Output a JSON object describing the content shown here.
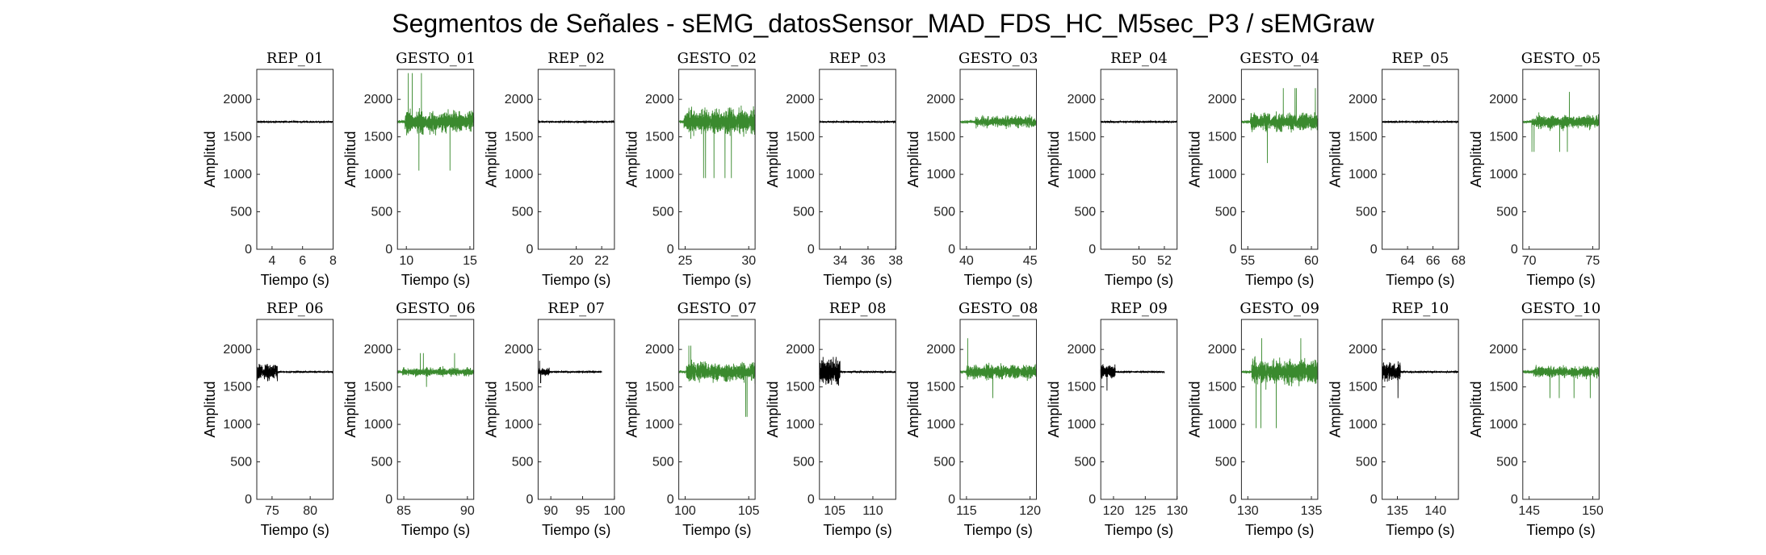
{
  "figure": {
    "title": "Segmentos de Señales - sEMG_datosSensor_MAD_FDS_HC_M5sec_P3 / sEMGraw"
  },
  "colors": {
    "rep": "#000000",
    "gesture": "#3a8a2e",
    "axis": "#262626"
  },
  "chart_data": [
    {
      "type": "line",
      "title": "REP_01",
      "kind": "rep",
      "xlabel": "Tiempo (s)",
      "ylabel": "Amplitud",
      "xlim": [
        3,
        8
      ],
      "ylim": [
        0,
        2400
      ],
      "xticks": [
        4,
        6,
        8
      ],
      "yticks": [
        0,
        500,
        1000,
        1500,
        2000
      ],
      "signal": {
        "baseline": 1700,
        "x_start": 3,
        "x_end": 8,
        "burst_end": 3,
        "min": 1670,
        "max": 1730
      }
    },
    {
      "type": "line",
      "title": "GESTO_01",
      "kind": "gesture",
      "xlabel": "Tiempo (s)",
      "ylabel": "Amplitud",
      "xlim": [
        9.3,
        15.3
      ],
      "ylim": [
        0,
        2400
      ],
      "xticks": [
        10,
        15
      ],
      "yticks": [
        0,
        500,
        1000,
        1500,
        2000
      ],
      "signal": {
        "baseline": 1700,
        "x_start": 9.3,
        "x_end": 15.3,
        "active_start": 9.9,
        "min": 1050,
        "max": 2350
      }
    },
    {
      "type": "line",
      "title": "REP_02",
      "kind": "rep",
      "xlabel": "Tiempo (s)",
      "ylabel": "Amplitud",
      "xlim": [
        17,
        23
      ],
      "ylim": [
        0,
        2400
      ],
      "xticks": [
        20,
        22
      ],
      "yticks": [
        0,
        500,
        1000,
        1500,
        2000
      ],
      "signal": {
        "baseline": 1700,
        "x_start": 17,
        "x_end": 23,
        "burst_end": 17,
        "min": 1670,
        "max": 1730
      }
    },
    {
      "type": "line",
      "title": "GESTO_02",
      "kind": "gesture",
      "xlabel": "Tiempo (s)",
      "ylabel": "Amplitud",
      "xlim": [
        24.5,
        30.5
      ],
      "ylim": [
        0,
        2400
      ],
      "xticks": [
        25,
        30
      ],
      "yticks": [
        0,
        500,
        1000,
        1500,
        2000
      ],
      "signal": {
        "baseline": 1700,
        "x_start": 24.5,
        "x_end": 30.5,
        "active_start": 24.9,
        "min": 950,
        "max": 2200
      }
    },
    {
      "type": "line",
      "title": "REP_03",
      "kind": "rep",
      "xlabel": "Tiempo (s)",
      "ylabel": "Amplitud",
      "xlim": [
        32.5,
        38
      ],
      "ylim": [
        0,
        2400
      ],
      "xticks": [
        34,
        36,
        38
      ],
      "yticks": [
        0,
        500,
        1000,
        1500,
        2000
      ],
      "signal": {
        "baseline": 1700,
        "x_start": 32.5,
        "x_end": 38,
        "burst_end": 32.5,
        "min": 1670,
        "max": 1730
      }
    },
    {
      "type": "line",
      "title": "GESTO_03",
      "kind": "gesture",
      "xlabel": "Tiempo (s)",
      "ylabel": "Amplitud",
      "xlim": [
        39.5,
        45.5
      ],
      "ylim": [
        0,
        2400
      ],
      "xticks": [
        40,
        45
      ],
      "yticks": [
        0,
        500,
        1000,
        1500,
        2000
      ],
      "signal": {
        "baseline": 1700,
        "x_start": 39.5,
        "x_end": 45.5,
        "active_start": 40.7,
        "min": 1450,
        "max": 2050
      }
    },
    {
      "type": "line",
      "title": "REP_04",
      "kind": "rep",
      "xlabel": "Tiempo (s)",
      "ylabel": "Amplitud",
      "xlim": [
        47,
        53
      ],
      "ylim": [
        0,
        2400
      ],
      "xticks": [
        50,
        52
      ],
      "yticks": [
        0,
        500,
        1000,
        1500,
        2000
      ],
      "signal": {
        "baseline": 1700,
        "x_start": 47,
        "x_end": 53,
        "burst_end": 47,
        "min": 1670,
        "max": 1730
      }
    },
    {
      "type": "line",
      "title": "GESTO_04",
      "kind": "gesture",
      "xlabel": "Tiempo (s)",
      "ylabel": "Amplitud",
      "xlim": [
        54.5,
        60.5
      ],
      "ylim": [
        0,
        2400
      ],
      "xticks": [
        55,
        60
      ],
      "yticks": [
        0,
        500,
        1000,
        1500,
        2000
      ],
      "signal": {
        "baseline": 1700,
        "x_start": 54.5,
        "x_end": 60.5,
        "active_start": 55.2,
        "min": 1150,
        "max": 2150
      }
    },
    {
      "type": "line",
      "title": "REP_05",
      "kind": "rep",
      "xlabel": "Tiempo (s)",
      "ylabel": "Amplitud",
      "xlim": [
        62,
        68
      ],
      "ylim": [
        0,
        2400
      ],
      "xticks": [
        64,
        66,
        68
      ],
      "yticks": [
        0,
        500,
        1000,
        1500,
        2000
      ],
      "signal": {
        "baseline": 1700,
        "x_start": 62,
        "x_end": 68,
        "burst_end": 62,
        "min": 1670,
        "max": 1730
      }
    },
    {
      "type": "line",
      "title": "GESTO_05",
      "kind": "gesture",
      "xlabel": "Tiempo (s)",
      "ylabel": "Amplitud",
      "xlim": [
        69.5,
        75.5
      ],
      "ylim": [
        0,
        2400
      ],
      "xticks": [
        70,
        75
      ],
      "yticks": [
        0,
        500,
        1000,
        1500,
        2000
      ],
      "signal": {
        "baseline": 1700,
        "x_start": 69.5,
        "x_end": 75.5,
        "active_start": 70.2,
        "min": 1300,
        "max": 2100
      }
    },
    {
      "type": "line",
      "title": "REP_06",
      "kind": "rep",
      "xlabel": "Tiempo (s)",
      "ylabel": "Amplitud",
      "xlim": [
        73,
        83
      ],
      "ylim": [
        0,
        2400
      ],
      "xticks": [
        75,
        80
      ],
      "yticks": [
        0,
        500,
        1000,
        1500,
        2000
      ],
      "signal": {
        "baseline": 1700,
        "x_start": 73,
        "x_end": 83,
        "burst_end": 75.7,
        "min": 1400,
        "max": 1950
      }
    },
    {
      "type": "line",
      "title": "GESTO_06",
      "kind": "gesture",
      "xlabel": "Tiempo (s)",
      "ylabel": "Amplitud",
      "xlim": [
        84.5,
        90.5
      ],
      "ylim": [
        0,
        2400
      ],
      "xticks": [
        85,
        90
      ],
      "yticks": [
        0,
        500,
        1000,
        1500,
        2000
      ],
      "signal": {
        "baseline": 1700,
        "x_start": 84.5,
        "x_end": 90.5,
        "active_start": 84.9,
        "min": 1500,
        "max": 1950
      }
    },
    {
      "type": "line",
      "title": "REP_07",
      "kind": "rep",
      "xlabel": "Tiempo (s)",
      "ylabel": "Amplitud",
      "xlim": [
        88,
        100
      ],
      "ylim": [
        0,
        2400
      ],
      "xticks": [
        90,
        95,
        100
      ],
      "yticks": [
        0,
        500,
        1000,
        1500,
        2000
      ],
      "signal": {
        "baseline": 1700,
        "x_start": 88,
        "x_end": 98,
        "burst_end": 89.8,
        "min": 1550,
        "max": 1850
      }
    },
    {
      "type": "line",
      "title": "GESTO_07",
      "kind": "gesture",
      "xlabel": "Tiempo (s)",
      "ylabel": "Amplitud",
      "xlim": [
        99.5,
        105.5
      ],
      "ylim": [
        0,
        2400
      ],
      "xticks": [
        100,
        105
      ],
      "yticks": [
        0,
        500,
        1000,
        1500,
        2000
      ],
      "signal": {
        "baseline": 1700,
        "x_start": 99.5,
        "x_end": 105.5,
        "active_start": 100.1,
        "min": 1100,
        "max": 2050
      }
    },
    {
      "type": "line",
      "title": "REP_08",
      "kind": "rep",
      "xlabel": "Tiempo (s)",
      "ylabel": "Amplitud",
      "xlim": [
        103,
        113
      ],
      "ylim": [
        0,
        2400
      ],
      "xticks": [
        105,
        110
      ],
      "yticks": [
        0,
        500,
        1000,
        1500,
        2000
      ],
      "signal": {
        "baseline": 1700,
        "x_start": 103,
        "x_end": 113,
        "burst_end": 105.7,
        "min": 1200,
        "max": 1900
      }
    },
    {
      "type": "line",
      "title": "GESTO_08",
      "kind": "gesture",
      "xlabel": "Tiempo (s)",
      "ylabel": "Amplitud",
      "xlim": [
        114.5,
        120.5
      ],
      "ylim": [
        0,
        2400
      ],
      "xticks": [
        115,
        120
      ],
      "yticks": [
        0,
        500,
        1000,
        1500,
        2000
      ],
      "signal": {
        "baseline": 1700,
        "x_start": 114.5,
        "x_end": 120.5,
        "active_start": 115.0,
        "min": 1350,
        "max": 2150
      }
    },
    {
      "type": "line",
      "title": "REP_09",
      "kind": "rep",
      "xlabel": "Tiempo (s)",
      "ylabel": "Amplitud",
      "xlim": [
        118,
        130
      ],
      "ylim": [
        0,
        2400
      ],
      "xticks": [
        120,
        125,
        130
      ],
      "yticks": [
        0,
        500,
        1000,
        1500,
        2000
      ],
      "signal": {
        "baseline": 1700,
        "x_start": 118,
        "x_end": 128,
        "burst_end": 120.3,
        "min": 1450,
        "max": 1900
      }
    },
    {
      "type": "line",
      "title": "GESTO_09",
      "kind": "gesture",
      "xlabel": "Tiempo (s)",
      "ylabel": "Amplitud",
      "xlim": [
        129.5,
        135.5
      ],
      "ylim": [
        0,
        2400
      ],
      "xticks": [
        130,
        135
      ],
      "yticks": [
        0,
        500,
        1000,
        1500,
        2000
      ],
      "signal": {
        "baseline": 1700,
        "x_start": 129.5,
        "x_end": 135.5,
        "active_start": 130.3,
        "min": 950,
        "max": 2150
      }
    },
    {
      "type": "line",
      "title": "REP_10",
      "kind": "rep",
      "xlabel": "Tiempo (s)",
      "ylabel": "Amplitud",
      "xlim": [
        133,
        143
      ],
      "ylim": [
        0,
        2400
      ],
      "xticks": [
        135,
        140
      ],
      "yticks": [
        0,
        500,
        1000,
        1500,
        2000
      ],
      "signal": {
        "baseline": 1700,
        "x_start": 133,
        "x_end": 143,
        "burst_end": 135.4,
        "min": 1350,
        "max": 1900
      }
    },
    {
      "type": "line",
      "title": "GESTO_10",
      "kind": "gesture",
      "xlabel": "Tiempo (s)",
      "ylabel": "Amplitud",
      "xlim": [
        144.5,
        150.5
      ],
      "ylim": [
        0,
        2400
      ],
      "xticks": [
        145,
        150
      ],
      "yticks": [
        0,
        500,
        1000,
        1500,
        2000
      ],
      "signal": {
        "baseline": 1700,
        "x_start": 144.5,
        "x_end": 150.5,
        "active_start": 145.3,
        "min": 1350,
        "max": 2000
      }
    }
  ]
}
